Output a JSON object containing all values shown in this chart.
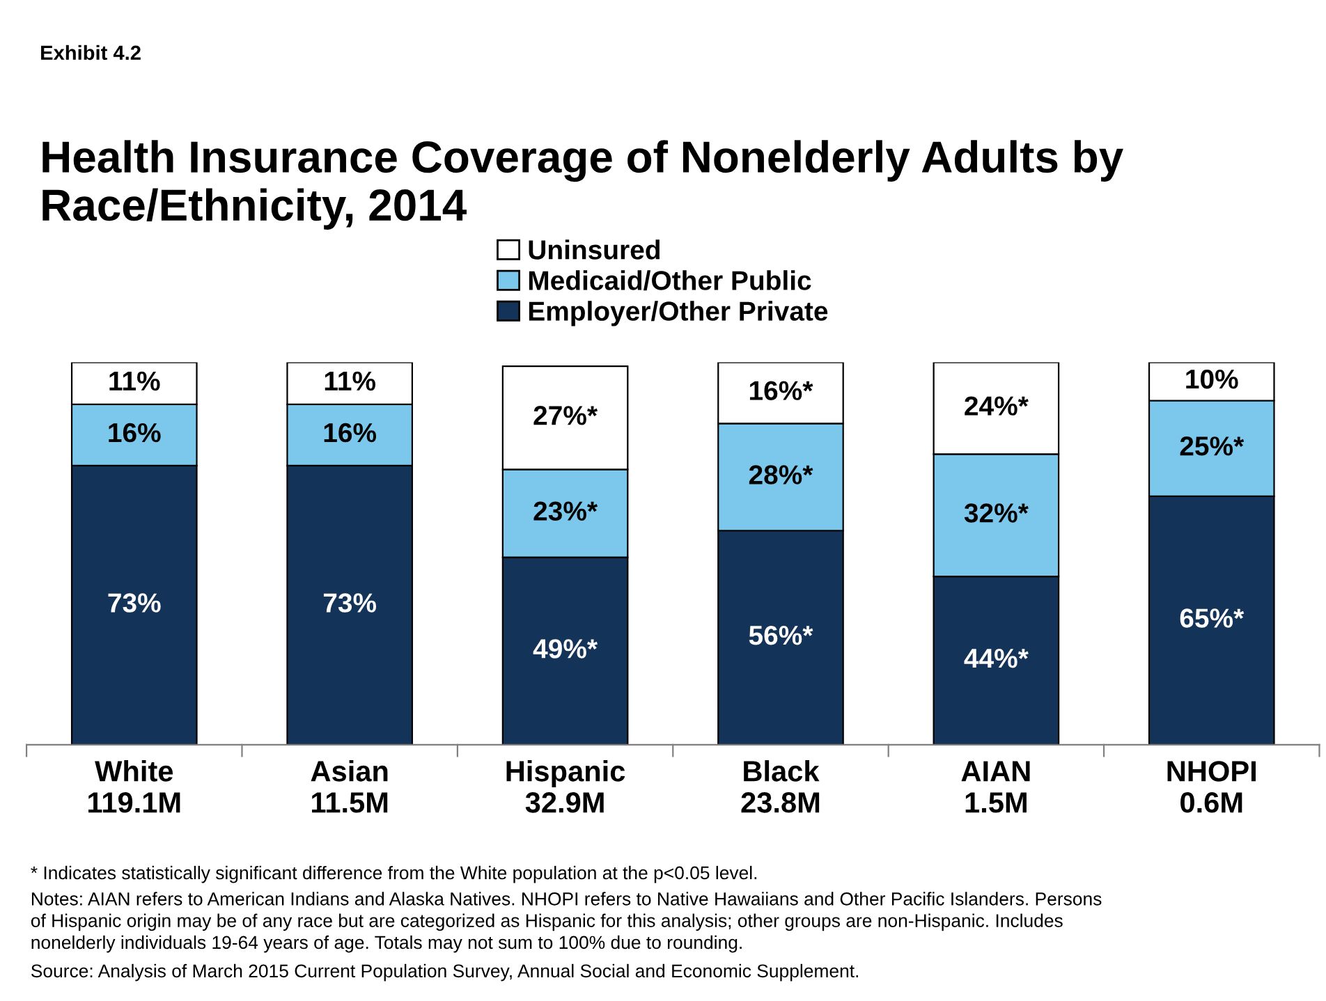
{
  "chart_data": {
    "type": "bar",
    "stacked": true,
    "title": "Health Insurance Coverage of Nonelderly Adults by Race/Ethnicity, 2014",
    "categories": [
      "White\n119.1M",
      "Asian\n11.5M",
      "Hispanic\n32.9M",
      "Black\n23.8M",
      "AIAN\n1.5M",
      "NHOPI\n0.6M"
    ],
    "series": [
      {
        "name": "Employer/Other Private",
        "color": "#143359",
        "values": [
          73,
          73,
          49,
          56,
          44,
          65
        ],
        "value_labels": [
          "73%",
          "73%",
          "49%*",
          "56%*",
          "44%*",
          "65%*"
        ]
      },
      {
        "name": "Medicaid/Other Public",
        "color": "#7cc8ec",
        "values": [
          16,
          16,
          23,
          28,
          32,
          25
        ],
        "value_labels": [
          "16%",
          "16%",
          "23%*",
          "28%*",
          "32%*",
          "25%*"
        ]
      },
      {
        "name": "Uninsured",
        "color": "#ffffff",
        "values": [
          11,
          11,
          27,
          16,
          24,
          10
        ],
        "value_labels": [
          "11%",
          "11%",
          "27%*",
          "16%*",
          "24%*",
          "10%"
        ]
      }
    ],
    "ylim": [
      0,
      100
    ],
    "tick_labels": "x",
    "legend": "top",
    "grid": false,
    "annotations": [
      "Exhibit 4.2",
      "* Indicates statistically significant difference from the White population at the p<0.05 level.",
      "Notes: AIAN refers to American Indians and Alaska Natives. NHOPI refers to Native Hawaiians and Other Pacific Islanders. Persons\nof Hispanic origin may be of any race but are categorized as Hispanic for this analysis; other groups are non-Hispanic. Includes\nnonelderly individuals 19-64 years of age. Totals may not sum to 100% due to rounding.",
      "Source: Analysis of March 2015 Current Population Survey, Annual Social and Economic Supplement."
    ]
  }
}
